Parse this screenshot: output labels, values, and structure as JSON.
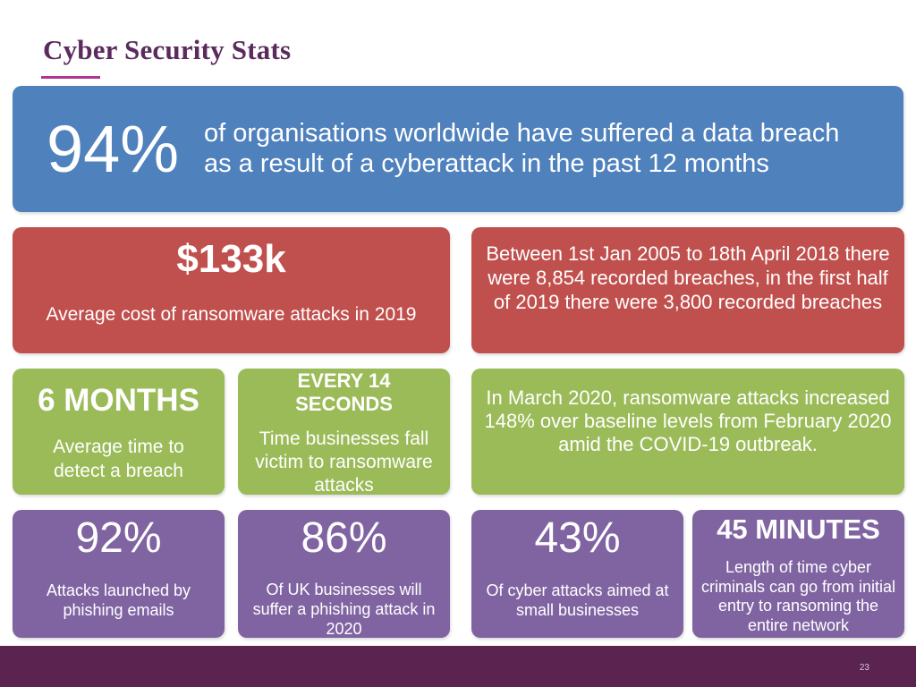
{
  "title": "Cyber Security Stats",
  "stats": {
    "breach": {
      "value": "94%",
      "text_line1": "of organisations worldwide have suffered a data breach",
      "text_line2": "as a result of a cyberattack in the past 12 months"
    },
    "ransomware_cost": {
      "value": "$133k",
      "label": "Average cost of ransomware attacks in 2019"
    },
    "recorded_breaches": {
      "text": "Between 1st Jan 2005 to 18th April 2018 there were 8,854 recorded breaches, in the first half of 2019 there were 3,800 recorded breaches"
    },
    "detect_time": {
      "value": "6 MONTHS",
      "label": "Average time to detect a breach"
    },
    "every_14": {
      "value": "EVERY 14 SECONDS",
      "label": "Time businesses fall victim to ransomware attacks"
    },
    "covid": {
      "text": "In March 2020, ransomware attacks increased 148% over baseline levels from February 2020 amid the COVID-19 outbreak."
    },
    "phishing": {
      "value": "92%",
      "label": "Attacks launched by phishing emails"
    },
    "uk": {
      "value": "86%",
      "label": "Of UK businesses will suffer a phishing attack in 2020"
    },
    "small_biz": {
      "value": "43%",
      "label": "Of cyber attacks aimed at small businesses"
    },
    "minutes": {
      "value": "45 MINUTES",
      "label": "Length of time cyber criminals can go from initial entry to ransoming the entire network"
    }
  },
  "page_number": "23",
  "colors": {
    "title": "#5b2a5e",
    "accent": "#b0368f",
    "blue": "#4f81bd",
    "red": "#c0504d",
    "green": "#9bbb59",
    "purple": "#8064a2",
    "footer": "#5b2350"
  }
}
